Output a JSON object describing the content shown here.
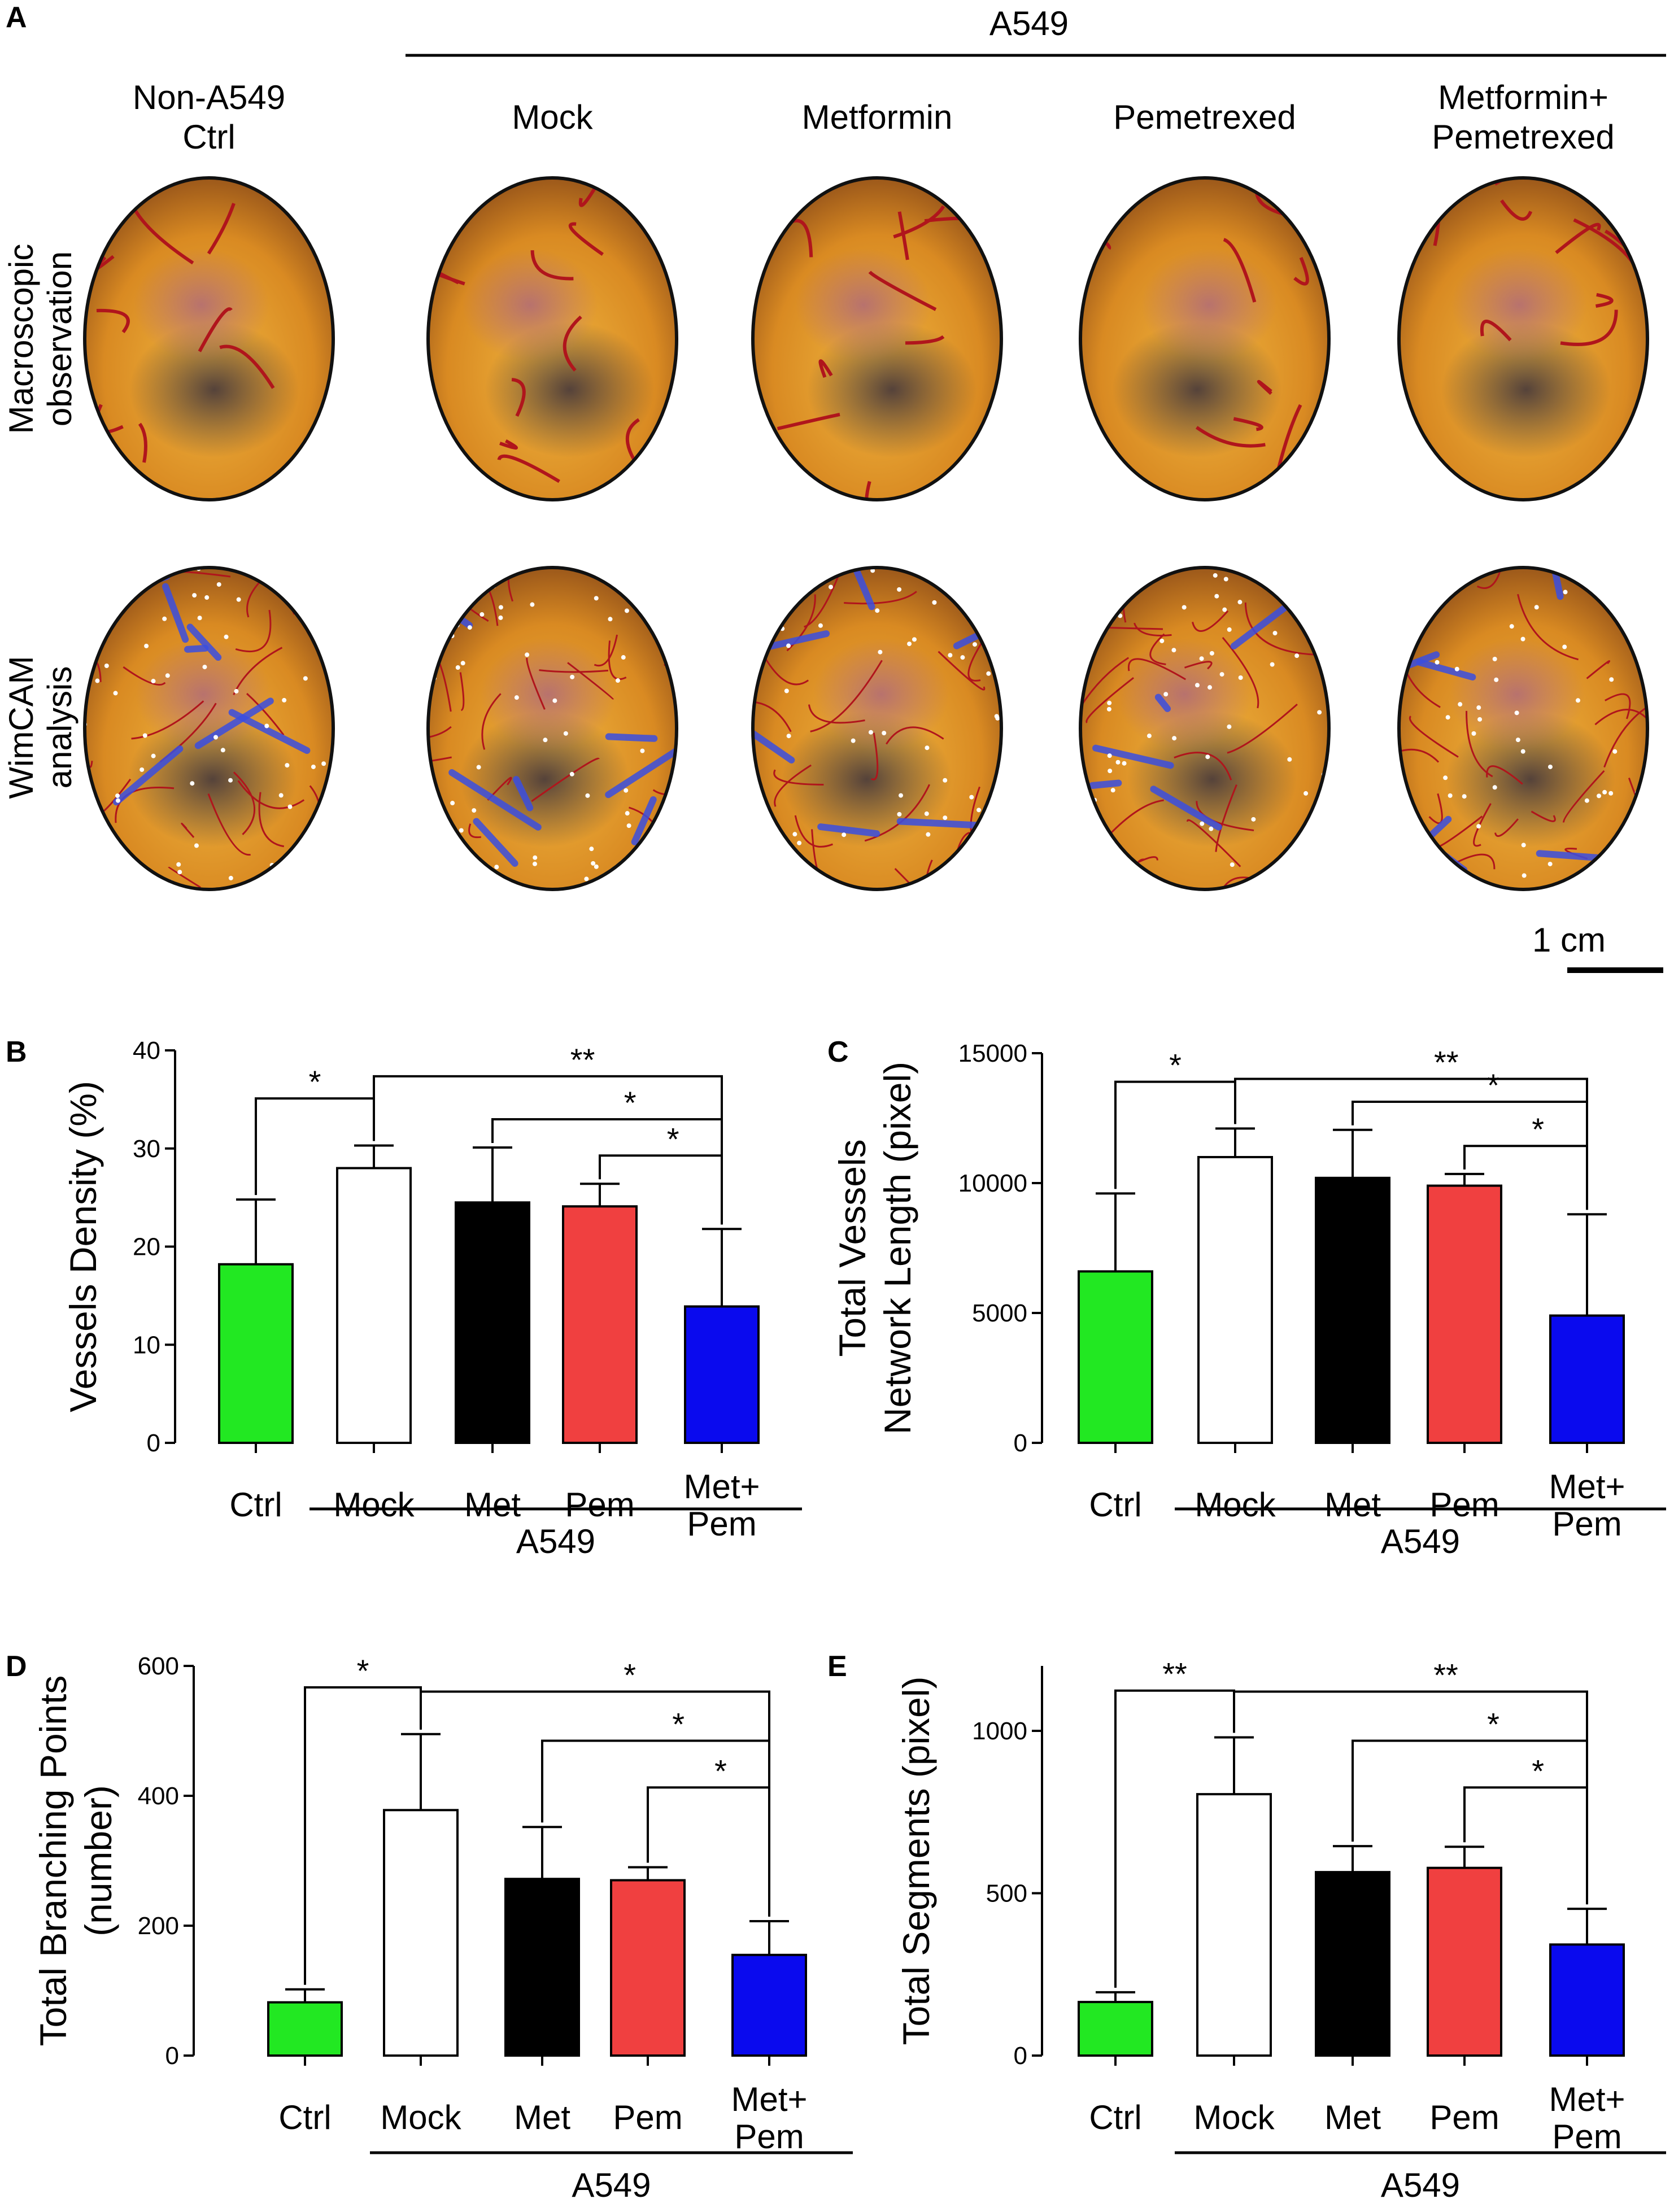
{
  "panel_a": {
    "letter": "A",
    "group_title": "A549",
    "columns": [
      {
        "line1": "Non-A549",
        "line2": "Ctrl"
      },
      {
        "line1": "Mock",
        "line2": ""
      },
      {
        "line1": "Metformin",
        "line2": ""
      },
      {
        "line1": "Pemetrexed",
        "line2": ""
      },
      {
        "line1": "Metformin+",
        "line2": "Pemetrexed"
      }
    ],
    "rows": [
      {
        "line1": "Macroscopic",
        "line2": "observation"
      },
      {
        "line1": "WimCAM",
        "line2": "analysis"
      }
    ],
    "scale_bar": "1 cm"
  },
  "colors": {
    "ctrl": "#22e822",
    "mock": "#ffffff",
    "met": "#000000",
    "pem": "#f04040",
    "combo": "#0a0aee",
    "vessel": "#b0151c",
    "analysis_line": "#3a4de0",
    "yolk": "#e09a2a"
  },
  "chart_data": [
    {
      "panel": "B",
      "type": "bar",
      "ylabel": [
        "Vessels Density (%)"
      ],
      "ylim": [
        0,
        40
      ],
      "yticks": [
        0,
        10,
        20,
        30,
        40
      ],
      "categories": [
        [
          "Ctrl"
        ],
        [
          "Mock"
        ],
        [
          "Met"
        ],
        [
          "Pem"
        ],
        [
          "Met+",
          "Pem"
        ]
      ],
      "values": [
        18.2,
        28.0,
        24.5,
        24.1,
        13.9
      ],
      "errors": [
        6.6,
        2.3,
        5.6,
        2.3,
        7.9
      ],
      "group_label": "A549",
      "significance": [
        {
          "from": 0,
          "to": 1,
          "label": "*"
        },
        {
          "from": 1,
          "to": 4,
          "label": "**"
        },
        {
          "from": 2,
          "to": 4,
          "label": "*"
        },
        {
          "from": 3,
          "to": 4,
          "label": "*"
        }
      ]
    },
    {
      "panel": "C",
      "type": "bar",
      "ylabel": [
        "Total Vessels",
        "Network Length (pixel)"
      ],
      "ylim": [
        0,
        15000
      ],
      "yticks": [
        0,
        5000,
        10000,
        15000
      ],
      "categories": [
        [
          "Ctrl"
        ],
        [
          "Mock"
        ],
        [
          "Met"
        ],
        [
          "Pem"
        ],
        [
          "Met+",
          "Pem"
        ]
      ],
      "values": [
        6600,
        11000,
        10200,
        9900,
        4900
      ],
      "errors": [
        3000,
        1100,
        1850,
        450,
        3900
      ],
      "group_label": "A549",
      "significance": [
        {
          "from": 0,
          "to": 1,
          "label": "*"
        },
        {
          "from": 1,
          "to": 4,
          "label": "**"
        },
        {
          "from": 2,
          "to": 4,
          "label": "*"
        },
        {
          "from": 3,
          "to": 4,
          "label": "*"
        }
      ]
    },
    {
      "panel": "D",
      "type": "bar",
      "ylabel": [
        "Total Branching Points",
        "(number)"
      ],
      "ylim": [
        0,
        600
      ],
      "yticks": [
        0,
        200,
        400,
        600
      ],
      "categories": [
        [
          "Ctrl"
        ],
        [
          "Mock"
        ],
        [
          "Met"
        ],
        [
          "Pem"
        ],
        [
          "Met+",
          "Pem"
        ]
      ],
      "values": [
        82,
        378,
        272,
        270,
        155
      ],
      "errors": [
        20,
        117,
        80,
        20,
        52
      ],
      "group_label": "A549",
      "significance": [
        {
          "from": 0,
          "to": 1,
          "label": "*"
        },
        {
          "from": 1,
          "to": 4,
          "label": "*"
        },
        {
          "from": 2,
          "to": 4,
          "label": "*"
        },
        {
          "from": 3,
          "to": 4,
          "label": "*"
        }
      ]
    },
    {
      "panel": "E",
      "type": "bar",
      "ylabel": [
        "Total Segments (pixel)"
      ],
      "ylim": [
        0,
        1200
      ],
      "yticks": [
        0,
        500,
        1000
      ],
      "categories": [
        [
          "Ctrl"
        ],
        [
          "Mock"
        ],
        [
          "Met"
        ],
        [
          "Pem"
        ],
        [
          "Met+",
          "Pem"
        ]
      ],
      "values": [
        165,
        805,
        565,
        578,
        342
      ],
      "errors": [
        30,
        175,
        80,
        65,
        110
      ],
      "group_label": "A549",
      "significance": [
        {
          "from": 0,
          "to": 1,
          "label": "**"
        },
        {
          "from": 1,
          "to": 4,
          "label": "**"
        },
        {
          "from": 2,
          "to": 4,
          "label": "*"
        },
        {
          "from": 3,
          "to": 4,
          "label": "*"
        }
      ]
    }
  ]
}
